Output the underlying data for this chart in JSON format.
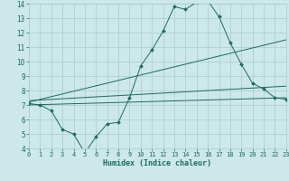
{
  "xlabel": "Humidex (Indice chaleur)",
  "xlim": [
    0,
    23
  ],
  "ylim": [
    4,
    14
  ],
  "yticks": [
    4,
    5,
    6,
    7,
    8,
    9,
    10,
    11,
    12,
    13,
    14
  ],
  "xticks": [
    0,
    1,
    2,
    3,
    4,
    5,
    6,
    7,
    8,
    9,
    10,
    11,
    12,
    13,
    14,
    15,
    16,
    17,
    18,
    19,
    20,
    21,
    22,
    23
  ],
  "bg_color": "#cce8e8",
  "grid_color": "#aacccc",
  "line_color": "#1a6b5a",
  "line1_x": [
    0,
    1,
    2,
    3,
    4,
    5,
    6,
    7,
    8,
    9,
    10,
    11,
    12,
    13,
    14,
    15,
    16,
    17,
    18,
    19,
    20,
    21,
    22,
    23
  ],
  "line1_y": [
    7.1,
    7.0,
    6.6,
    5.3,
    5.0,
    3.7,
    4.8,
    5.7,
    5.8,
    7.5,
    9.7,
    10.8,
    12.1,
    13.8,
    13.6,
    14.1,
    14.2,
    13.1,
    11.3,
    9.8,
    8.5,
    8.1,
    7.5,
    7.4
  ],
  "line2_x": [
    0,
    23
  ],
  "line2_y": [
    7.0,
    7.5
  ],
  "line3_x": [
    0,
    23
  ],
  "line3_y": [
    7.2,
    11.5
  ],
  "line4_x": [
    0,
    23
  ],
  "line4_y": [
    7.3,
    8.3
  ]
}
